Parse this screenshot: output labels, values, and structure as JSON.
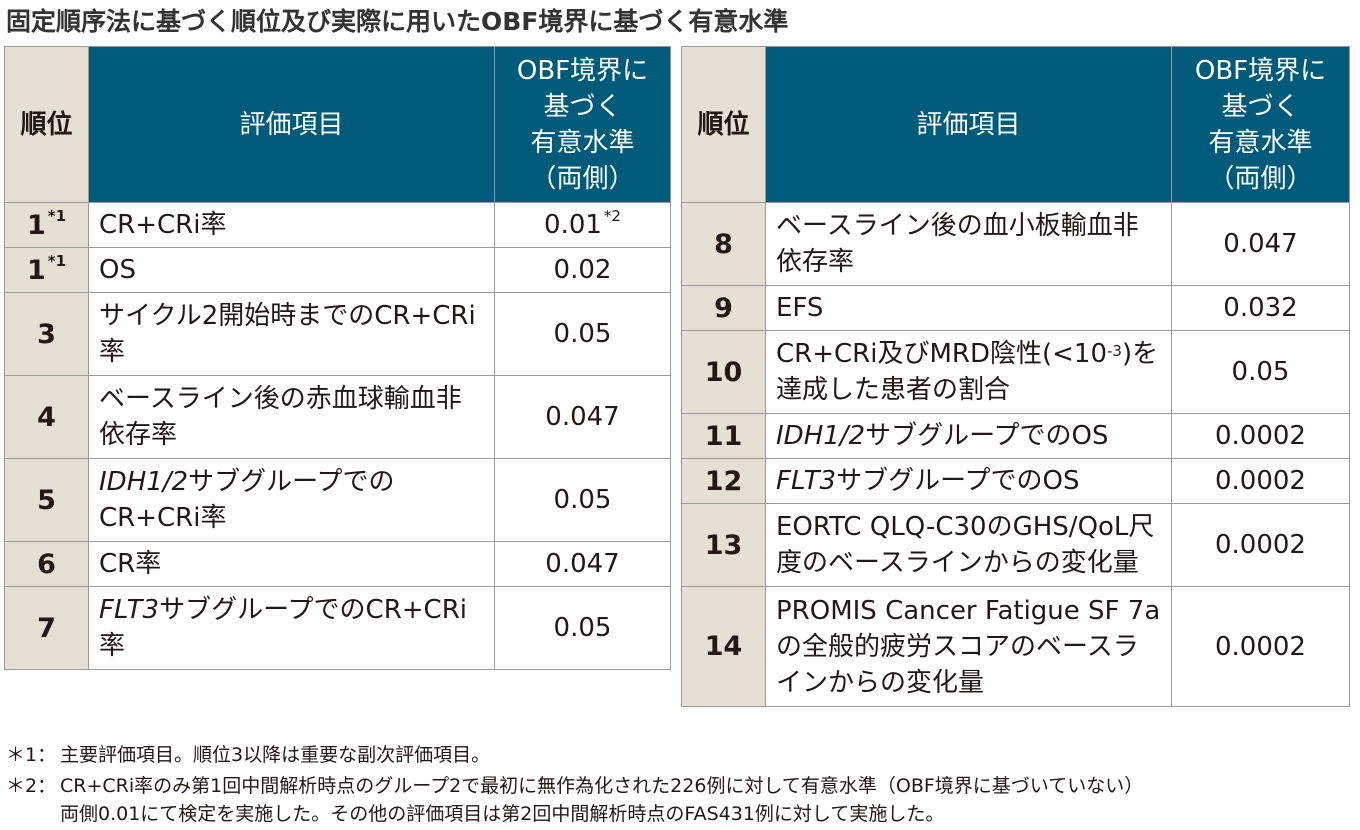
{
  "title": "固定順序法に基づく順位及び実際に用いたOBF境界に基づく有意水準",
  "headers": {
    "rank": "順位",
    "item": "評価項目",
    "level_lines": [
      "OBF境界に",
      "基づく",
      "有意水準",
      "（両側）"
    ]
  },
  "left_rows": [
    {
      "rank": "1",
      "rank_note": "*1",
      "item": "CR+CRi率",
      "level": "0.01",
      "level_note": "*2"
    },
    {
      "rank": "1",
      "rank_note": "*1",
      "item": "OS",
      "level": "0.02"
    },
    {
      "rank": "3",
      "item": "サイクル2開始時までのCR+CRi率",
      "level": "0.05"
    },
    {
      "rank": "4",
      "item": "ベースライン後の赤血球輸血非依存率",
      "level": "0.047"
    },
    {
      "rank": "5",
      "item_italic": "IDH1/2",
      "item": "サブグループでのCR+CRi率",
      "level": "0.05"
    },
    {
      "rank": "6",
      "item": "CR率",
      "level": "0.047"
    },
    {
      "rank": "7",
      "item_italic": "FLT3",
      "item": "サブグループでのCR+CRi率",
      "level": "0.05"
    }
  ],
  "right_rows": [
    {
      "rank": "8",
      "item": "ベースライン後の血小板輸血非依存率",
      "level": "0.047"
    },
    {
      "rank": "9",
      "item": "EFS",
      "level": "0.032"
    },
    {
      "rank": "10",
      "item": "CR+CRi及びMRD陰性(<10",
      "item_exp": "-3",
      "item_tail": ")を達成した患者の割合",
      "level": "0.05"
    },
    {
      "rank": "11",
      "item_italic": "IDH1/2",
      "item": "サブグループでのOS",
      "level": "0.0002"
    },
    {
      "rank": "12",
      "item_italic": "FLT3",
      "item": "サブグループでのOS",
      "level": "0.0002"
    },
    {
      "rank": "13",
      "item": "EORTC QLQ-C30のGHS/QoL尺度のベースラインからの変化量",
      "level": "0.0002"
    },
    {
      "rank": "14",
      "item": "PROMIS Cancer Fatigue SF 7aの全般的疲労スコアのベースラインからの変化量",
      "level": "0.0002"
    }
  ],
  "footnotes": [
    {
      "mark": "＊1：",
      "lines": [
        "主要評価項目。順位3以降は重要な副次評価項目。"
      ]
    },
    {
      "mark": "＊2：",
      "lines": [
        "CR+CRi率のみ第1回中間解析時点のグループ2で最初に無作為化された226例に対して有意水準（OBF境界に基づいていない）",
        "両側0.01にて検定を実施した。その他の評価項目は第2回中間解析時点のFAS431例に対して実施した。"
      ]
    }
  ],
  "colors": {
    "header_bg": "#005a7a",
    "rank_bg": "#e6e0d4",
    "border": "#9a9a9a"
  }
}
